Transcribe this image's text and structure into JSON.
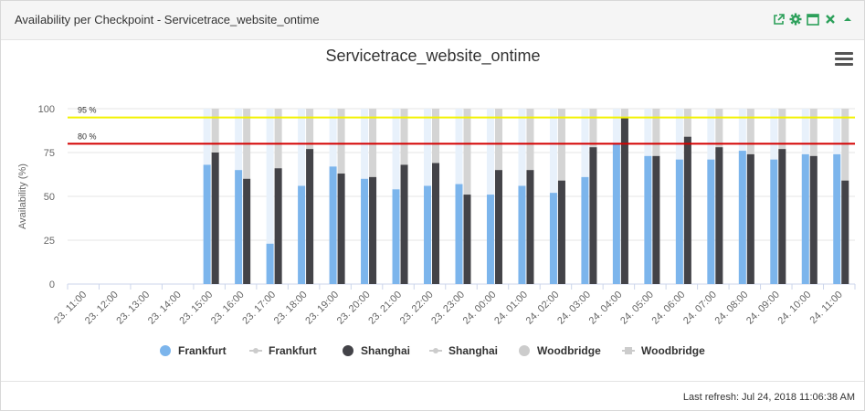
{
  "widget": {
    "title": "Availability per Checkpoint - Servicetrace_website_ontime",
    "icons": [
      "external-link-icon",
      "gear-icon",
      "maximize-icon",
      "close-icon",
      "collapse-icon"
    ],
    "accent_color": "#2ca05a"
  },
  "footer": {
    "last_refresh": "Last refresh: Jul 24, 2018 11:06:38 AM"
  },
  "chart_data": {
    "type": "bar",
    "title": "Servicetrace_website_ontime",
    "ylabel": "Availability (%)",
    "xlabel": "",
    "ylim": [
      0,
      100
    ],
    "yticks": [
      0,
      25,
      50,
      75,
      100
    ],
    "categories": [
      "23. 11:00",
      "23. 12:00",
      "23. 13:00",
      "23. 14:00",
      "23. 15:00",
      "23. 16:00",
      "23. 17:00",
      "23. 18:00",
      "23. 19:00",
      "23. 20:00",
      "23. 21:00",
      "23. 22:00",
      "23. 23:00",
      "24. 00:00",
      "24. 01:00",
      "24. 02:00",
      "24. 03:00",
      "24. 04:00",
      "24. 05:00",
      "24. 06:00",
      "24. 07:00",
      "24. 08:00",
      "24. 09:00",
      "24. 10:00",
      "24. 11:00"
    ],
    "series": [
      {
        "name": "Frankfurt",
        "color": "#7cb5ec",
        "background_color": "#e8f1fb",
        "values": [
          null,
          null,
          null,
          null,
          68,
          65,
          23,
          56,
          67,
          60,
          54,
          56,
          57,
          51,
          56,
          52,
          61,
          80,
          73,
          71,
          71,
          76,
          71,
          74,
          74
        ]
      },
      {
        "name": "Shanghai",
        "color": "#434348",
        "background_color": "#d4d4d4",
        "values": [
          null,
          null,
          null,
          null,
          75,
          60,
          66,
          77,
          63,
          61,
          68,
          69,
          51,
          65,
          65,
          59,
          78,
          95,
          73,
          84,
          78,
          74,
          77,
          73,
          59
        ]
      }
    ],
    "legend": {
      "position": "bottom",
      "items": [
        {
          "name": "Frankfurt",
          "symbol": "circle",
          "color": "#7cb5ec"
        },
        {
          "name": "Frankfurt",
          "symbol": "line",
          "color": "#cccccc"
        },
        {
          "name": "Shanghai",
          "symbol": "circle",
          "color": "#434348"
        },
        {
          "name": "Shanghai",
          "symbol": "line",
          "color": "#cccccc"
        },
        {
          "name": "Woodbridge",
          "symbol": "circle",
          "color": "#cccccc"
        },
        {
          "name": "Woodbridge",
          "symbol": "square",
          "color": "#cccccc"
        }
      ]
    },
    "plot_lines": [
      {
        "value": 95,
        "label": "95 %",
        "color": "#f2f200"
      },
      {
        "value": 80,
        "label": "80 %",
        "color": "#d40000"
      }
    ],
    "grid": true
  }
}
